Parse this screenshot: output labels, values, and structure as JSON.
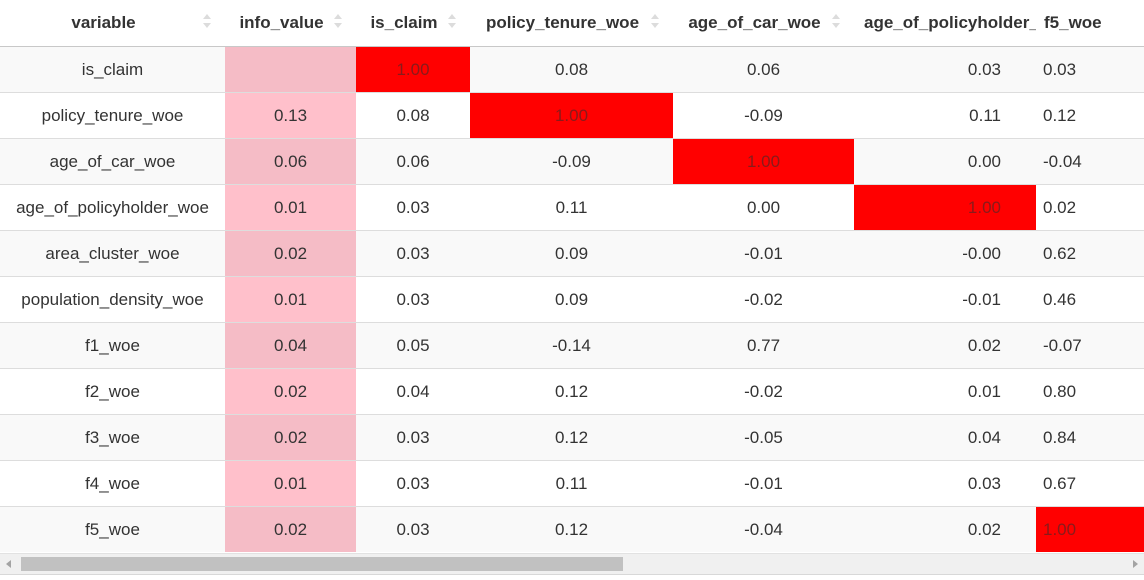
{
  "columns": [
    "variable",
    "info_value",
    "is_claim",
    "policy_tenure_woe",
    "age_of_car_woe",
    "age_of_policyholder_woe",
    "f5_woe"
  ],
  "rows": [
    [
      "is_claim",
      "",
      "1.00",
      "0.08",
      "0.06",
      "0.03",
      "0.03"
    ],
    [
      "policy_tenure_woe",
      "0.13",
      "0.08",
      "1.00",
      "-0.09",
      "0.11",
      "0.12"
    ],
    [
      "age_of_car_woe",
      "0.06",
      "0.06",
      "-0.09",
      "1.00",
      "0.00",
      "-0.04"
    ],
    [
      "age_of_policyholder_woe",
      "0.01",
      "0.03",
      "0.11",
      "0.00",
      "1.00",
      "0.02"
    ],
    [
      "area_cluster_woe",
      "0.02",
      "0.03",
      "0.09",
      "-0.01",
      "-0.00",
      "0.62"
    ],
    [
      "population_density_woe",
      "0.01",
      "0.03",
      "0.09",
      "-0.02",
      "-0.01",
      "0.46"
    ],
    [
      "f1_woe",
      "0.04",
      "0.05",
      "-0.14",
      "0.77",
      "0.02",
      "-0.07"
    ],
    [
      "f2_woe",
      "0.02",
      "0.04",
      "0.12",
      "-0.02",
      "0.01",
      "0.80"
    ],
    [
      "f3_woe",
      "0.02",
      "0.03",
      "0.12",
      "-0.05",
      "0.04",
      "0.84"
    ],
    [
      "f4_woe",
      "0.01",
      "0.03",
      "0.11",
      "-0.01",
      "0.03",
      "0.67"
    ],
    [
      "f5_woe",
      "0.02",
      "0.03",
      "0.12",
      "-0.04",
      "0.02",
      "1.00"
    ]
  ],
  "highlight": {
    "row_color": "#ff0000",
    "info_value_color": "#ffc0cb"
  },
  "icons": {
    "sort": "sort-icon",
    "scroll_left": "scroll-left-arrow-icon",
    "scroll_right": "scroll-right-arrow-icon"
  }
}
